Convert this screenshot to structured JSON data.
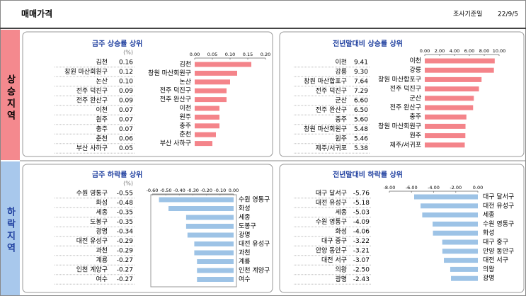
{
  "header": {
    "title": "매매가격",
    "survey_label": "조사기준일",
    "date": "22/9/5"
  },
  "sections": [
    {
      "label": "상승지역"
    },
    {
      "label": "하락지역"
    }
  ],
  "panels": [
    {
      "title": "금주 상승률 상위",
      "unit": "(%)",
      "color": "#f4848a",
      "categories": [
        "김천",
        "창원 마산회원구",
        "논산",
        "전주 덕진구",
        "전주 완산구",
        "이천",
        "원주",
        "충주",
        "춘천",
        "부산 사하구"
      ],
      "values": [
        0.16,
        0.12,
        0.1,
        0.09,
        0.09,
        0.07,
        0.07,
        0.07,
        0.06,
        0.05
      ],
      "value_labels": [
        "0.16",
        "0.12",
        "0.10",
        "0.09",
        "0.09",
        "0.07",
        "0.07",
        "0.07",
        "0.06",
        "0.05"
      ],
      "xlim": [
        0,
        0.2
      ],
      "xticks": [
        {
          "value": 0,
          "label": "0.00"
        },
        {
          "value": 0.05,
          "label": "0.05"
        },
        {
          "value": 0.1,
          "label": "0.10"
        },
        {
          "value": 0.15,
          "label": "0.15"
        },
        {
          "value": 0.2,
          "label": "0.20"
        }
      ]
    },
    {
      "title": "전년말대비 상승률 상위",
      "color": "#f4848a",
      "categories": [
        "이천",
        "강릉",
        "창원 마산합포구",
        "전주 덕진구",
        "군산",
        "전주 완산구",
        "충주",
        "창원 마산회원구",
        "원주",
        "제주/서귀포"
      ],
      "values": [
        9.41,
        9.3,
        7.64,
        7.29,
        6.6,
        6.5,
        5.6,
        5.48,
        5.46,
        5.38
      ],
      "value_labels": [
        "9.41",
        "9.30",
        "7.64",
        "7.29",
        "6.60",
        "6.50",
        "5.60",
        "5.48",
        "5.46",
        "5.38"
      ],
      "xlim": [
        0,
        10
      ],
      "xticks": [
        {
          "value": 0,
          "label": "0.00"
        },
        {
          "value": 2,
          "label": "2.00"
        },
        {
          "value": 4,
          "label": "4.00"
        },
        {
          "value": 6,
          "label": "6.00"
        },
        {
          "value": 8,
          "label": "8.00"
        },
        {
          "value": 10,
          "label": "10.00"
        }
      ]
    },
    {
      "title": "금주 하락률 상위",
      "unit": "(%)",
      "color": "#9dc3e6",
      "categories": [
        "수원 영통구",
        "화성",
        "세종",
        "도봉구",
        "광명",
        "대전 유성구",
        "과천",
        "계룡",
        "인천 계양구",
        "여수"
      ],
      "values": [
        -0.55,
        -0.48,
        -0.35,
        -0.35,
        -0.34,
        -0.29,
        -0.29,
        -0.27,
        -0.27,
        -0.27
      ],
      "value_labels": [
        "-0.55",
        "-0.48",
        "-0.35",
        "-0.35",
        "-0.34",
        "-0.29",
        "-0.29",
        "-0.27",
        "-0.27",
        "-0.27"
      ],
      "xlim": [
        -0.6,
        0
      ],
      "xticks": [
        {
          "value": -0.6,
          "label": "-0.60"
        },
        {
          "value": -0.5,
          "label": "-0.50"
        },
        {
          "value": -0.4,
          "label": "-0.40"
        },
        {
          "value": -0.3,
          "label": "-0.30"
        },
        {
          "value": -0.2,
          "label": "-0.20"
        },
        {
          "value": -0.1,
          "label": "-0.10"
        },
        {
          "value": 0,
          "label": "0.00"
        }
      ]
    },
    {
      "title": "전년말대비 하락률 상위",
      "color": "#9dc3e6",
      "categories": [
        "대구 달서구",
        "대전 유성구",
        "세종",
        "수원 영통구",
        "화성",
        "대구 중구",
        "안양 동안구",
        "대전 서구",
        "의왕",
        "광명"
      ],
      "values": [
        -5.76,
        -5.18,
        -5.03,
        -4.09,
        -4.06,
        -3.22,
        -3.21,
        -3.07,
        -2.5,
        -2.43
      ],
      "value_labels": [
        "-5.76",
        "-5.18",
        "-5.03",
        "-4.09",
        "-4.06",
        "-3.22",
        "-3.21",
        "-3.07",
        "-2.50",
        "-2.43"
      ],
      "xlim": [
        -8,
        0
      ],
      "xticks": [
        {
          "value": -8,
          "label": "-8.00"
        },
        {
          "value": -6,
          "label": "-6.00"
        },
        {
          "value": -4,
          "label": "-4.00"
        },
        {
          "value": -2,
          "label": "-2.00"
        },
        {
          "value": 0,
          "label": "0.00"
        }
      ]
    }
  ]
}
